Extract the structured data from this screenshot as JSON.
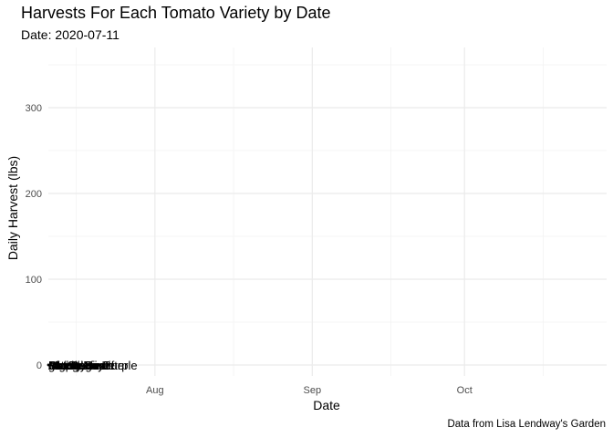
{
  "chart_data": {
    "type": "line",
    "title": "Harvests For Each Tomato Variety by Date",
    "subtitle": "Date: 2020-07-11",
    "xlabel": "Date",
    "ylabel": "Daily Harvest (lbs)",
    "caption": "Data from Lisa Lendway's Garden",
    "xlim": [
      "2020-07-11",
      "2020-10-29"
    ],
    "ylim": [
      0,
      360
    ],
    "x_ticks": [
      {
        "label": "Aug",
        "date": "2020-08-01"
      },
      {
        "label": "Sep",
        "date": "2020-09-01"
      },
      {
        "label": "Oct",
        "date": "2020-10-01"
      }
    ],
    "y_ticks": [
      0,
      100,
      200,
      300
    ],
    "grid": true,
    "legend": "none",
    "series": [
      {
        "name": "Amish Paste",
        "x": [
          "2020-07-11"
        ],
        "y": [
          0
        ]
      },
      {
        "name": "Better Boy",
        "x": [
          "2020-07-11"
        ],
        "y": [
          0
        ]
      },
      {
        "name": "Big Beef",
        "x": [
          "2020-07-11"
        ],
        "y": [
          0
        ]
      },
      {
        "name": "Black Krim",
        "x": [
          "2020-07-11"
        ],
        "y": [
          0
        ]
      },
      {
        "name": "Bonny Best",
        "x": [
          "2020-07-11"
        ],
        "y": [
          0
        ]
      },
      {
        "name": "Brandywine",
        "x": [
          "2020-07-11"
        ],
        "y": [
          0
        ]
      },
      {
        "name": "Cherokee Purple",
        "x": [
          "2020-07-11"
        ],
        "y": [
          0
        ]
      },
      {
        "name": "grape",
        "x": [
          "2020-07-11"
        ],
        "y": [
          0
        ]
      },
      {
        "name": "Jet Star",
        "x": [
          "2020-07-11"
        ],
        "y": [
          0
        ]
      },
      {
        "name": "Mortgage Lifter",
        "x": [
          "2020-07-11"
        ],
        "y": [
          0
        ]
      },
      {
        "name": "Old German",
        "x": [
          "2020-07-11"
        ],
        "y": [
          0
        ]
      }
    ]
  }
}
